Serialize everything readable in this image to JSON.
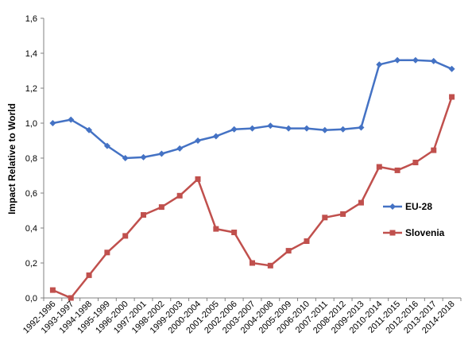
{
  "chart_data": {
    "type": "line",
    "title": "",
    "xlabel": "",
    "ylabel": "Impact Relative to World",
    "ylim": [
      0,
      1.6
    ],
    "yticks": [
      "0,0",
      "0,2",
      "0,4",
      "0,6",
      "0,8",
      "1,0",
      "1,2",
      "1,4",
      "1,6"
    ],
    "grid": false,
    "legend_position": "right",
    "categories": [
      "1992-1996",
      "1993-1997",
      "1994-1998",
      "1995-1999",
      "1996-2000",
      "1997-2001",
      "1998-2002",
      "1999-2003",
      "2000-2004",
      "2001-2005",
      "2002-2006",
      "2003-2007",
      "2004-2008",
      "2005-2009",
      "2006-2010",
      "2007-2011",
      "2008-2012",
      "2009-2013",
      "2010-2014",
      "2011-2015",
      "2012-2016",
      "2013-2017",
      "2014-2018"
    ],
    "series": [
      {
        "name": "EU-28",
        "color": "#4472C4",
        "marker": "diamond",
        "values": [
          1.0,
          1.02,
          0.96,
          0.87,
          0.8,
          0.805,
          0.825,
          0.855,
          0.9,
          0.925,
          0.965,
          0.97,
          0.985,
          0.97,
          0.97,
          0.96,
          0.965,
          0.975,
          1.335,
          1.36,
          1.36,
          1.355,
          1.31
        ]
      },
      {
        "name": "Slovenia",
        "color": "#C0504D",
        "marker": "square",
        "values": [
          0.045,
          0.0,
          0.13,
          0.26,
          0.355,
          0.475,
          0.52,
          0.585,
          0.68,
          0.395,
          0.375,
          0.2,
          0.185,
          0.27,
          0.325,
          0.46,
          0.48,
          0.545,
          0.75,
          0.73,
          0.775,
          0.845,
          1.15
        ]
      }
    ]
  }
}
